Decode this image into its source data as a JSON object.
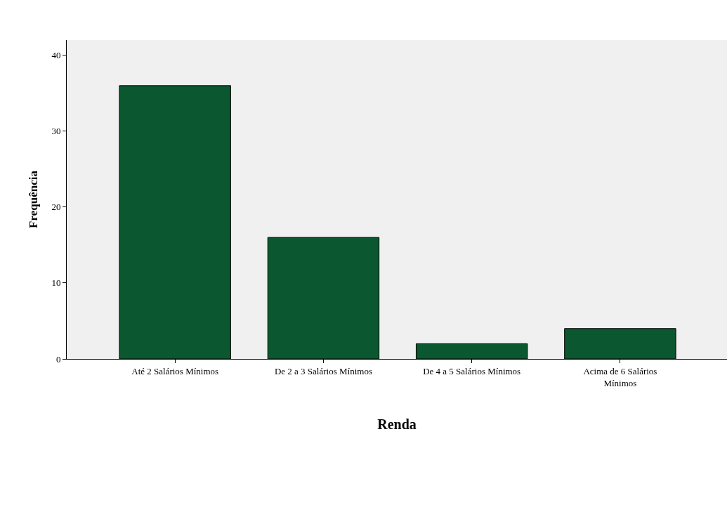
{
  "chart_data": {
    "type": "bar",
    "xlabel": "Renda",
    "ylabel": "Frequência",
    "categories": [
      "Até 2 Salários Mínimos",
      "De 2 a 3 Salários Mínimos",
      "De 4 a 5 Salários Mínimos",
      "Acima de 6 Salários Mínimos"
    ],
    "values": [
      36,
      16,
      2,
      4
    ],
    "color": "#0b5730",
    "ylim": [
      0,
      42
    ],
    "yticks": [
      0,
      10,
      20,
      30,
      40
    ]
  }
}
